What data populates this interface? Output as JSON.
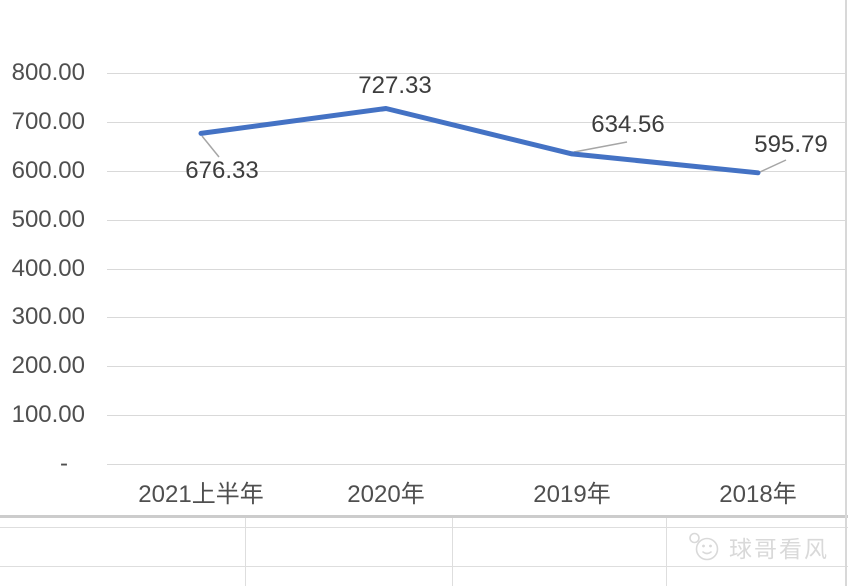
{
  "chart_data": {
    "type": "line",
    "title": "",
    "categories": [
      "2021上半年",
      "2020年",
      "2019年",
      "2018年"
    ],
    "series": [
      {
        "name": "",
        "values": [
          676.33,
          727.33,
          634.56,
          595.79
        ]
      }
    ],
    "data_labels": [
      "676.33",
      "727.33",
      "634.56",
      "595.79"
    ],
    "y_axis": {
      "tick_labels": [
        "800.00",
        "700.00",
        "600.00",
        "500.00",
        "400.00",
        "300.00",
        "200.00",
        "100.00",
        "-"
      ],
      "tick_values": [
        800,
        700,
        600,
        500,
        400,
        300,
        200,
        100,
        0
      ],
      "range": [
        0,
        800
      ]
    },
    "x_axis": {
      "label": ""
    },
    "grid": "horizontal",
    "legend": "none",
    "colors": {
      "line": "#4472c4",
      "gridline": "#d9d9d9",
      "axis_text": "#4f4f4f",
      "data_label_text": "#3d3d3d",
      "leader_line": "#a6a6a6"
    }
  },
  "watermark": {
    "label": "球哥看风",
    "icon": "mascot-face-icon",
    "color": "#d9d9d9"
  }
}
